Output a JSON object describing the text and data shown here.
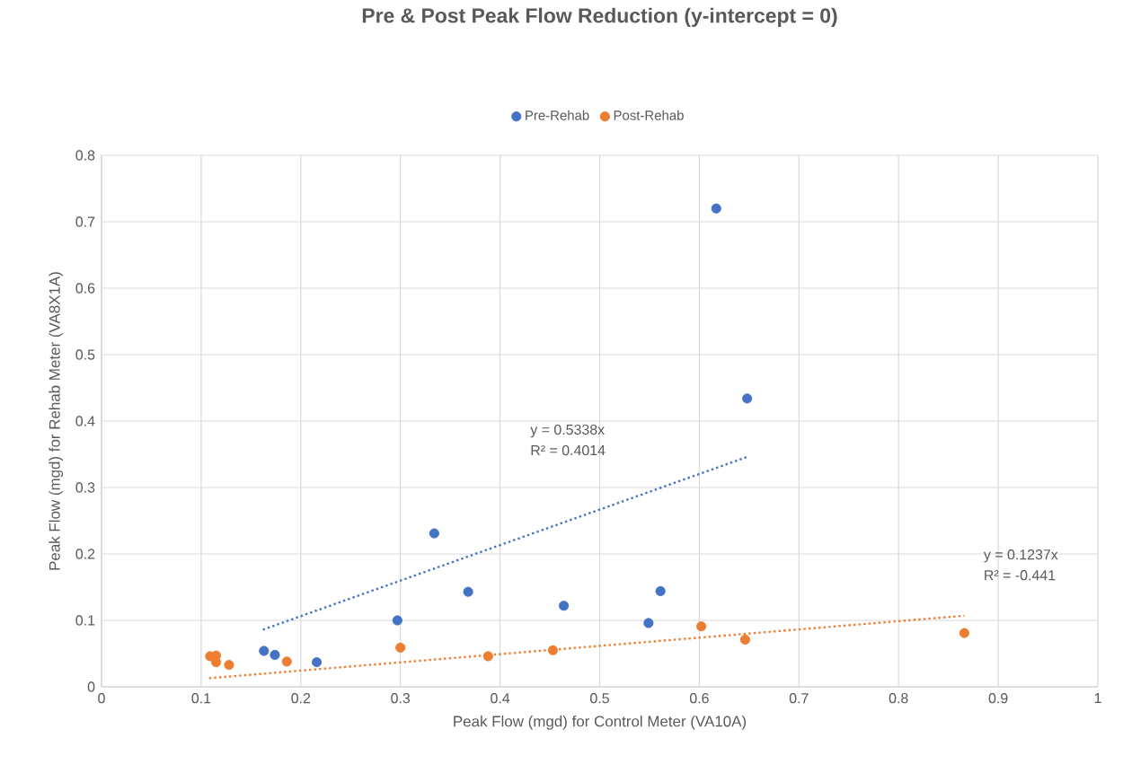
{
  "chart_data": {
    "type": "scatter",
    "title": "Pre & Post Peak Flow Reduction (y-intercept = 0)",
    "xlabel": "Peak Flow (mgd) for Control Meter  (VA10A)",
    "ylabel": "Peak Flow (mgd) for Rehab Meter  (VA8X1A)",
    "xlim": [
      0,
      1
    ],
    "xticks": [
      0,
      0.1,
      0.2,
      0.3,
      0.4,
      0.5,
      0.6,
      0.7,
      0.8,
      0.9,
      1
    ],
    "ylim": [
      0,
      0.8
    ],
    "yticks": [
      0,
      0.1,
      0.2,
      0.3,
      0.4,
      0.5,
      0.6,
      0.7,
      0.8
    ],
    "grid": true,
    "legend": "top",
    "marker": "circle",
    "series": [
      {
        "name": "Pre-Rehab",
        "color": "#4472c4",
        "x": [
          0.163,
          0.174,
          0.216,
          0.297,
          0.334,
          0.368,
          0.464,
          0.549,
          0.561,
          0.617,
          0.648
        ],
        "values": [
          0.054,
          0.048,
          0.037,
          0.1,
          0.231,
          0.143,
          0.122,
          0.096,
          0.144,
          0.72,
          0.434
        ]
      },
      {
        "name": "Post-Rehab",
        "color": "#ed7d31",
        "x": [
          0.109,
          0.115,
          0.115,
          0.128,
          0.186,
          0.3,
          0.388,
          0.453,
          0.602,
          0.646,
          0.866
        ],
        "values": [
          0.046,
          0.047,
          0.037,
          0.033,
          0.038,
          0.059,
          0.046,
          0.055,
          0.091,
          0.071,
          0.081
        ]
      },
      {
        "type": "line",
        "color": "#4472c4",
        "line_style": "dotted",
        "marker": "none",
        "x": [
          0.162,
          0.648
        ],
        "values": [
          0.086,
          0.346
        ]
      },
      {
        "type": "line",
        "color": "#ed7d31",
        "line_style": "dotted",
        "marker": "none",
        "x": [
          0.108,
          0.866
        ],
        "values": [
          0.013,
          0.107
        ]
      }
    ],
    "annotations": [
      "y = 0.5338x",
      "R² = 0.4014",
      "y = 0.1237x",
      "R² = -0.441"
    ]
  }
}
